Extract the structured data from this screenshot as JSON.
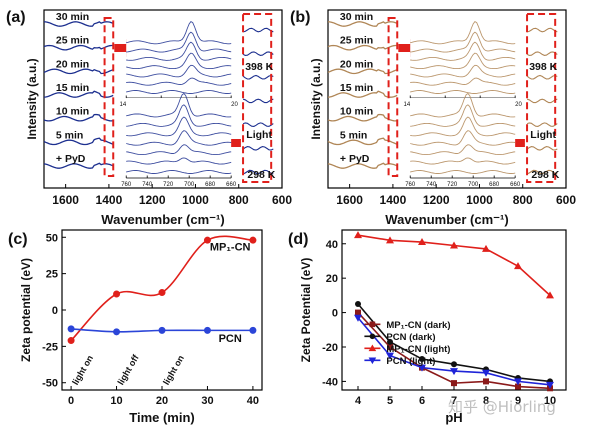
{
  "watermark": "知乎 @Hiorling",
  "chart_data": [
    {
      "panel": "(a)",
      "type": "line",
      "xlabel": "Wavenumber (cm⁻¹)",
      "ylabel": "Intensity (a.u.)",
      "xlim": [
        1700,
        600
      ],
      "xticks": [
        1600,
        1400,
        1200,
        1000,
        800,
        600
      ],
      "curve_labels": [
        "30 min",
        "25 min",
        "20 min",
        "15 min",
        "10 min",
        "5 min",
        "+ PyD"
      ],
      "right_labels": [
        "398 K",
        "Light",
        "298 K"
      ],
      "line_color": "#1c2f8f",
      "inset_top": {
        "xticks": [
          1480,
          1460,
          1440,
          1420
        ],
        "xlim": [
          1480,
          1420
        ]
      },
      "inset_bottom": {
        "xticks": [
          760,
          740,
          720,
          700,
          680,
          660
        ],
        "xlim": [
          760,
          660
        ]
      }
    },
    {
      "panel": "(b)",
      "type": "line",
      "xlabel": "Wavenumber (cm⁻¹)",
      "ylabel": "Intensity (a.u.)",
      "xlim": [
        1700,
        600
      ],
      "xticks": [
        1600,
        1400,
        1200,
        1000,
        800,
        600
      ],
      "curve_labels": [
        "30 min",
        "25 min",
        "20 min",
        "15 min",
        "10 min",
        "5 min",
        "+ PyD"
      ],
      "right_labels": [
        "398 K",
        "Light",
        "298 K"
      ],
      "line_color": "#b08656",
      "inset_top": {
        "xticks": [
          1480,
          1460,
          1440,
          1420
        ],
        "xlim": [
          1480,
          1420
        ]
      },
      "inset_bottom": {
        "xticks": [
          760,
          740,
          720,
          700,
          680,
          660
        ],
        "xlim": [
          760,
          660
        ]
      }
    },
    {
      "panel": "(c)",
      "type": "line",
      "xlabel": "Time (min)",
      "ylabel": "Zeta potential (eV)",
      "xlim": [
        -2,
        42
      ],
      "ylim": [
        -55,
        55
      ],
      "xticks": [
        0,
        10,
        20,
        30,
        40
      ],
      "yticks": [
        -50,
        -25,
        0,
        25,
        50
      ],
      "x": [
        0,
        10,
        20,
        30,
        40
      ],
      "series": [
        {
          "name": "MP₁-CN",
          "color": "#e0201b",
          "values": [
            -21,
            11,
            12,
            48,
            48
          ]
        },
        {
          "name": "PCN",
          "color": "#2b45d8",
          "values": [
            -13,
            -15,
            -14,
            -14,
            -14
          ]
        }
      ],
      "annotations": [
        {
          "text": "light on",
          "x": 0
        },
        {
          "text": "light off",
          "x": 10
        },
        {
          "text": "light on",
          "x": 20
        }
      ]
    },
    {
      "panel": "(d)",
      "type": "line",
      "xlabel": "pH",
      "ylabel": "Zeta Potential (eV)",
      "xlim": [
        3.5,
        10.5
      ],
      "ylim": [
        -45,
        48
      ],
      "xticks": [
        4,
        5,
        6,
        7,
        8,
        9,
        10
      ],
      "yticks": [
        -40,
        -20,
        0,
        20,
        40
      ],
      "x": [
        4,
        5,
        6,
        7,
        8,
        9,
        10
      ],
      "series": [
        {
          "name": "MP₁-CN (dark)",
          "color": "#8b1a1a",
          "marker": "square",
          "values": [
            0,
            -20,
            -32,
            -41,
            -40,
            -43,
            -44
          ]
        },
        {
          "name": "PCN (dark)",
          "color": "#111111",
          "marker": "circle",
          "values": [
            5,
            -17,
            -27,
            -30,
            -33,
            -38,
            -40
          ]
        },
        {
          "name": "MP₁-CN (light)",
          "color": "#e0201b",
          "marker": "triangle-up",
          "values": [
            45,
            42,
            41,
            39,
            37,
            27,
            10
          ]
        },
        {
          "name": "PCN (light)",
          "color": "#1f24d8",
          "marker": "triangle-down",
          "values": [
            -3,
            -25,
            -32,
            -34,
            -35,
            -40,
            -42
          ]
        }
      ]
    }
  ]
}
